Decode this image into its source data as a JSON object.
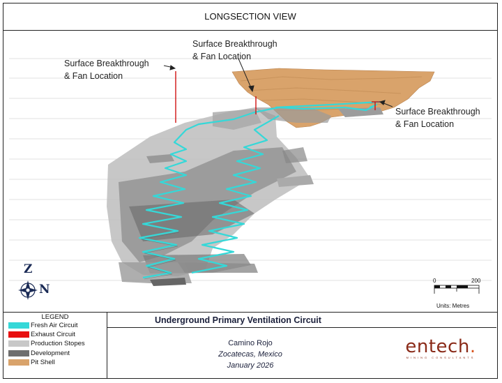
{
  "title": "LONGSECTION VIEW",
  "annotations": [
    {
      "line1": "Surface Breakthrough",
      "line2": "& Fan Location"
    },
    {
      "line1": "Surface Breakthrough",
      "line2": "& Fan Location"
    },
    {
      "line1": "Surface Breakthrough",
      "line2": "& Fan Location"
    }
  ],
  "compass": {
    "up": "Z",
    "right": "N"
  },
  "scale": {
    "start": "0",
    "end": "200",
    "units": "Units: Metres"
  },
  "legend": {
    "title": "LEGEND",
    "items": [
      {
        "label": "Fresh Air Circuit",
        "color": "#35d8d8"
      },
      {
        "label": "Exhaust Circuit",
        "color": "#e81010"
      },
      {
        "label": "Production Stopes",
        "color": "#c8c8c8"
      },
      {
        "label": "Development",
        "color": "#6e6e6e"
      },
      {
        "label": "Pit Shell",
        "color": "#d9a36b"
      }
    ]
  },
  "project": {
    "title": "Underground Primary Ventilation Circuit",
    "name": "Camino Rojo",
    "location": "Zocatecas, Mexico",
    "date": "January 2026"
  },
  "logo": {
    "word": "entech",
    "dot": ".",
    "tagline": "MINING CONSULTANTS"
  }
}
